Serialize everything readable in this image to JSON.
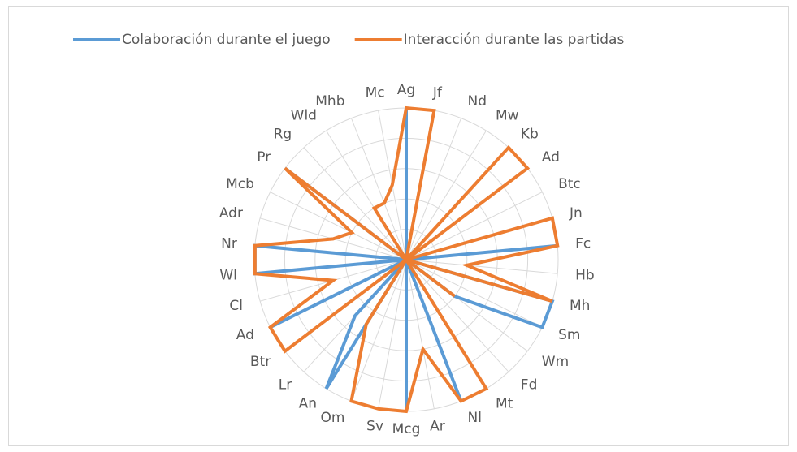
{
  "chart_data": {
    "type": "radar",
    "categories": [
      "Ag",
      "Jf",
      "Nd",
      "Mw",
      "Kb",
      "Ad",
      "Btc",
      "Jn",
      "Fc",
      "Hb",
      "Mh",
      "Sm",
      "Wm",
      "Fd",
      "Mt",
      "Nl",
      "Ar",
      "Mcg",
      "Sv",
      "Om",
      "An",
      "Lr",
      "Btr",
      "Ad",
      "Cl",
      "Wl",
      "Nr",
      "Adr",
      "Mcb",
      "Pr",
      "Rg",
      "Wld",
      "Mhb",
      "Mc"
    ],
    "series": [
      {
        "name": "Colaboración durante el juego",
        "color": "#5b9bd5",
        "values": [
          5,
          0,
          0,
          0,
          0,
          0,
          0,
          0,
          5,
          0,
          5,
          5,
          2,
          0,
          0,
          5,
          0,
          5,
          0,
          0,
          5,
          2.5,
          0,
          5,
          0,
          5,
          5,
          0,
          0,
          5,
          0,
          0,
          0,
          0
        ]
      },
      {
        "name": "Interacción durante las partidas",
        "color": "#ed7d31",
        "values": [
          5,
          5,
          0,
          0,
          5,
          5,
          0,
          5,
          5,
          2,
          5,
          0,
          2,
          0,
          5,
          5,
          3,
          5,
          5,
          5,
          2.5,
          0,
          5,
          5,
          2.5,
          5,
          5,
          2.5,
          2,
          5,
          0,
          2,
          2,
          2.5
        ]
      }
    ],
    "ylim": [
      0,
      5
    ],
    "yticks": [
      0,
      1,
      2,
      3,
      4,
      5
    ],
    "grid": true,
    "legend": "top"
  }
}
